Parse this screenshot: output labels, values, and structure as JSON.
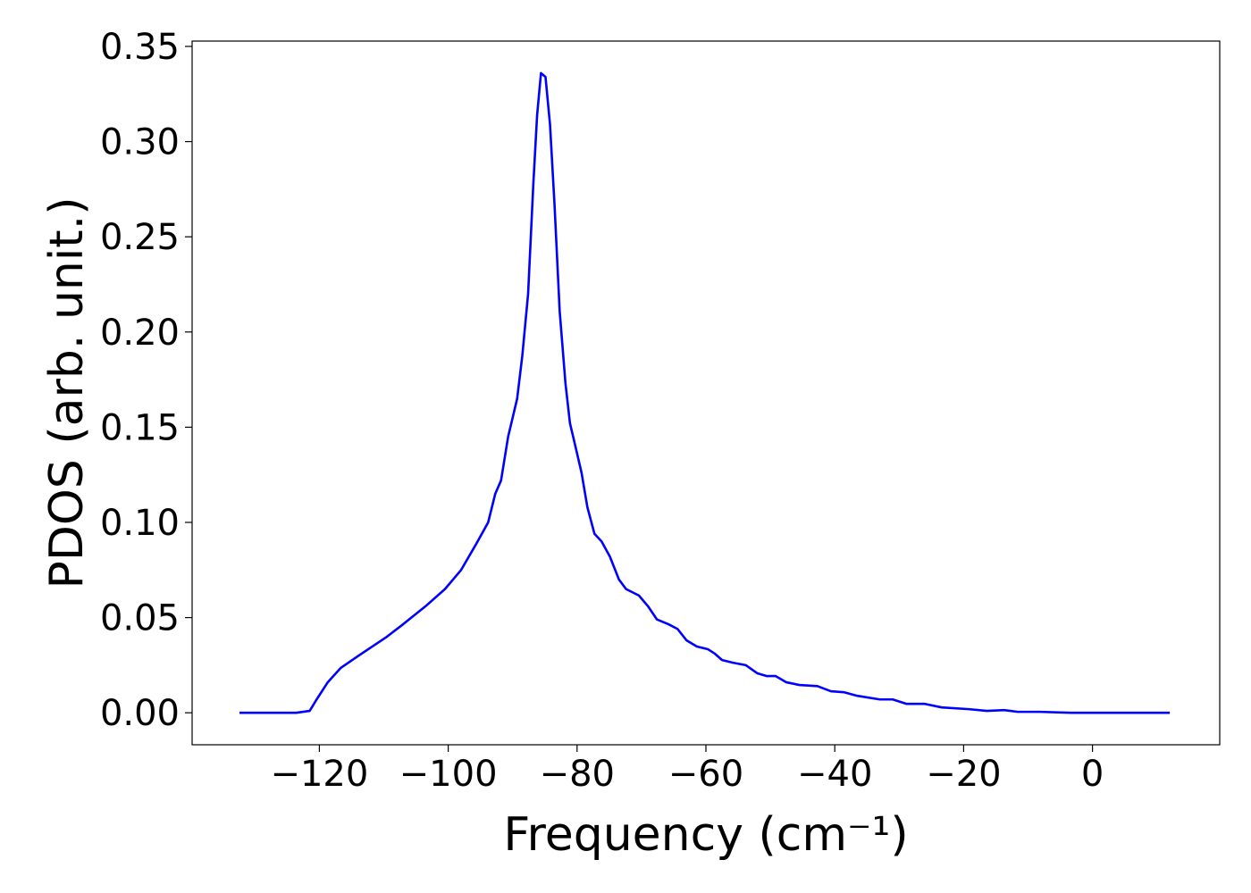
{
  "chart_data": {
    "type": "line",
    "x_label": "Frequency (cm⁻¹)",
    "y_label": "PDOS (arb. unit.)",
    "xlim": [
      -139.75,
      19.75
    ],
    "ylim": [
      -0.0168,
      0.3528
    ],
    "xticks": [
      {
        "value": -120,
        "label": "−120"
      },
      {
        "value": -100,
        "label": "−100"
      },
      {
        "value": -80,
        "label": "−80"
      },
      {
        "value": -60,
        "label": "−60"
      },
      {
        "value": -40,
        "label": "−40"
      },
      {
        "value": -20,
        "label": "−20"
      },
      0
    ],
    "yticks": [
      {
        "value": 0,
        "label": "0.00"
      },
      0.05,
      {
        "value": 0.1,
        "label": "0.10"
      },
      0.15,
      {
        "value": 0.2,
        "label": "0.20"
      },
      0.25,
      {
        "value": 0.3,
        "label": "0.30"
      },
      0.35
    ],
    "grid": false,
    "series": [
      {
        "color": "#0000ff",
        "x": [
          -132.4,
          -123.6,
          -121.5,
          -120.5,
          -118.7,
          -116.7,
          -113.9,
          -109.7,
          -107.0,
          -103.5,
          -100.5,
          -98.0,
          -95.6,
          -93.8,
          -92.7,
          -91.8,
          -90.7,
          -89.3,
          -88.5,
          -87.6,
          -86.8,
          -86.2,
          -85.6,
          -84.9,
          -84.2,
          -83.5,
          -82.7,
          -81.8,
          -81.1,
          -80.4,
          -79.3,
          -78.4,
          -77.3,
          -76.2,
          -74.9,
          -73.5,
          -72.4,
          -70.4,
          -69.0,
          -67.6,
          -65.8,
          -64.4,
          -63.0,
          -61.4,
          -59.7,
          -58.6,
          -57.5,
          -55.8,
          -53.8,
          -52.0,
          -50.6,
          -49.2,
          -47.5,
          -45.5,
          -42.7,
          -40.6,
          -38.6,
          -36.5,
          -33.0,
          -31.0,
          -28.9,
          -26.1,
          -23.4,
          -19.2,
          -16.4,
          -13.7,
          -11.6,
          -8.2,
          -3.3,
          12.0
        ],
        "values": [
          0,
          0,
          0.001,
          0.0066,
          0.016,
          0.0235,
          0.03,
          0.0395,
          0.0465,
          0.056,
          0.065,
          0.075,
          0.089,
          0.1,
          0.115,
          0.122,
          0.145,
          0.165,
          0.1875,
          0.22,
          0.277,
          0.314,
          0.336,
          0.334,
          0.309,
          0.267,
          0.211,
          0.173,
          0.152,
          0.142,
          0.126,
          0.108,
          0.094,
          0.09,
          0.082,
          0.07,
          0.065,
          0.0616,
          0.056,
          0.049,
          0.0465,
          0.044,
          0.038,
          0.0348,
          0.0334,
          0.031,
          0.0277,
          0.0263,
          0.025,
          0.0207,
          0.0193,
          0.0193,
          0.016,
          0.0146,
          0.014,
          0.0113,
          0.0108,
          0.0089,
          0.007,
          0.007,
          0.0047,
          0.0047,
          0.0028,
          0.0019,
          0.001,
          0.0014,
          0.0005,
          0.0005,
          0,
          0
        ]
      }
    ]
  }
}
